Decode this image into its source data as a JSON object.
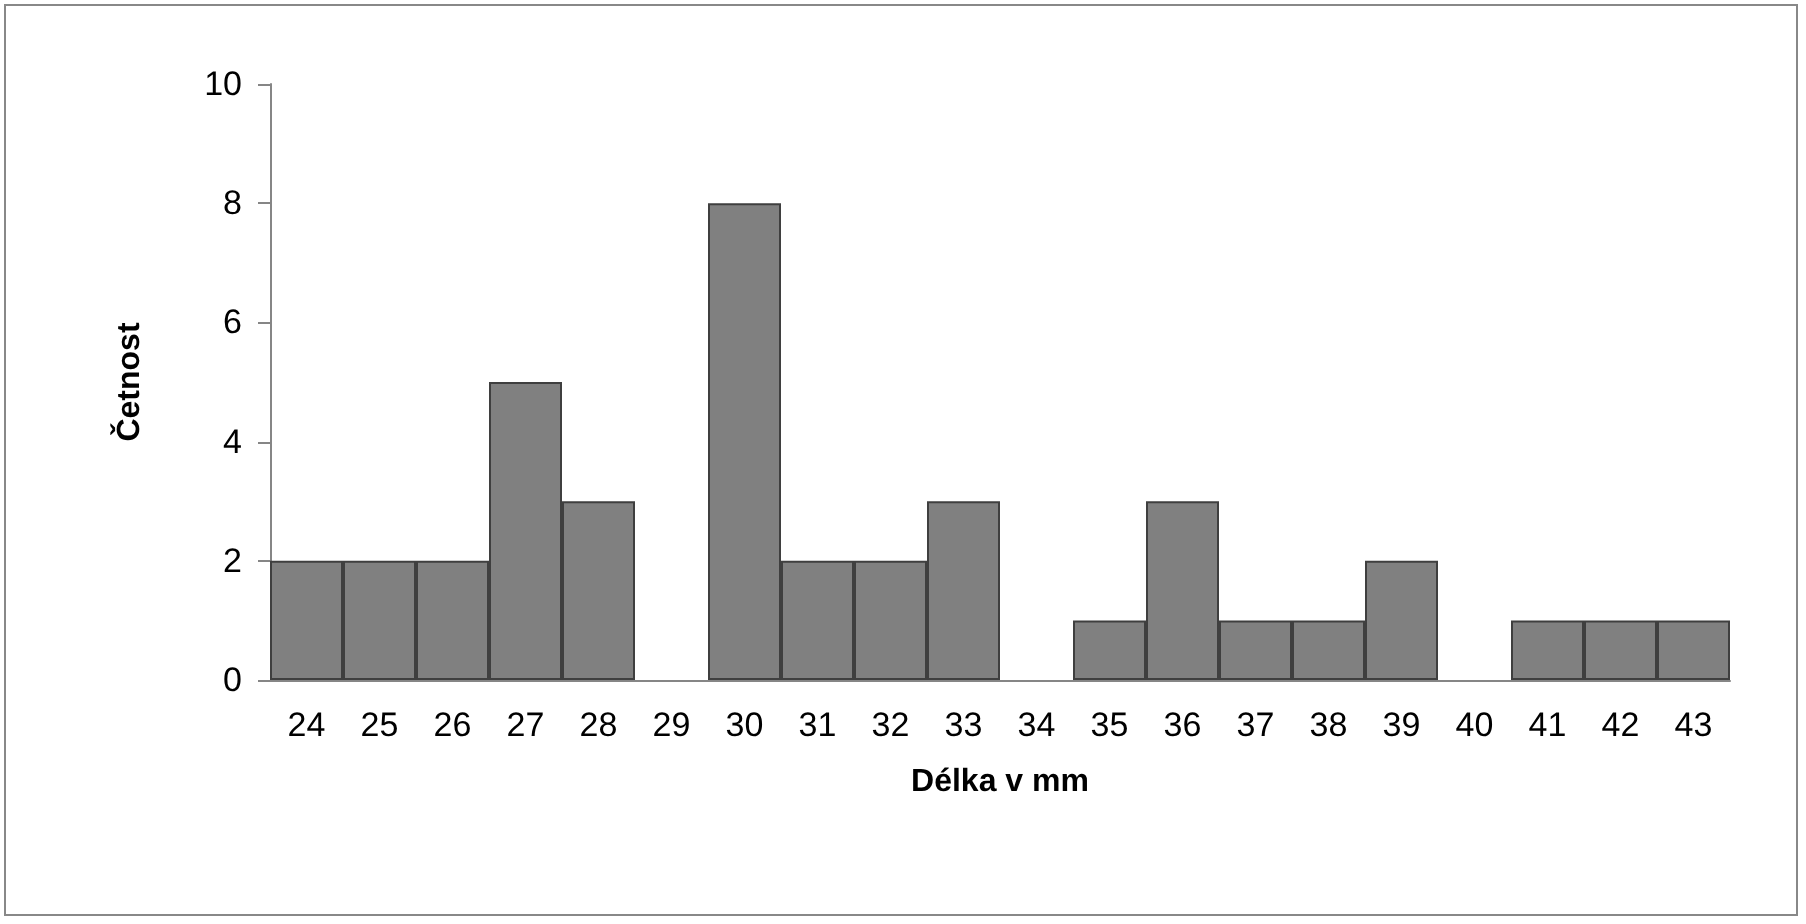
{
  "chart_data": {
    "type": "bar",
    "xlabel": "Délka v mm",
    "ylabel": "Četnost",
    "categories": [
      "24",
      "25",
      "26",
      "27",
      "28",
      "29",
      "30",
      "31",
      "32",
      "33",
      "34",
      "35",
      "36",
      "37",
      "38",
      "39",
      "40",
      "41",
      "42",
      "43"
    ],
    "values": [
      2,
      2,
      2,
      5,
      3,
      0,
      8,
      2,
      2,
      3,
      0,
      1,
      3,
      1,
      1,
      2,
      0,
      1,
      1,
      1
    ],
    "color": "#808080",
    "ylim": [
      0,
      10
    ],
    "yticks": [
      0,
      2,
      4,
      6,
      8,
      10
    ]
  }
}
